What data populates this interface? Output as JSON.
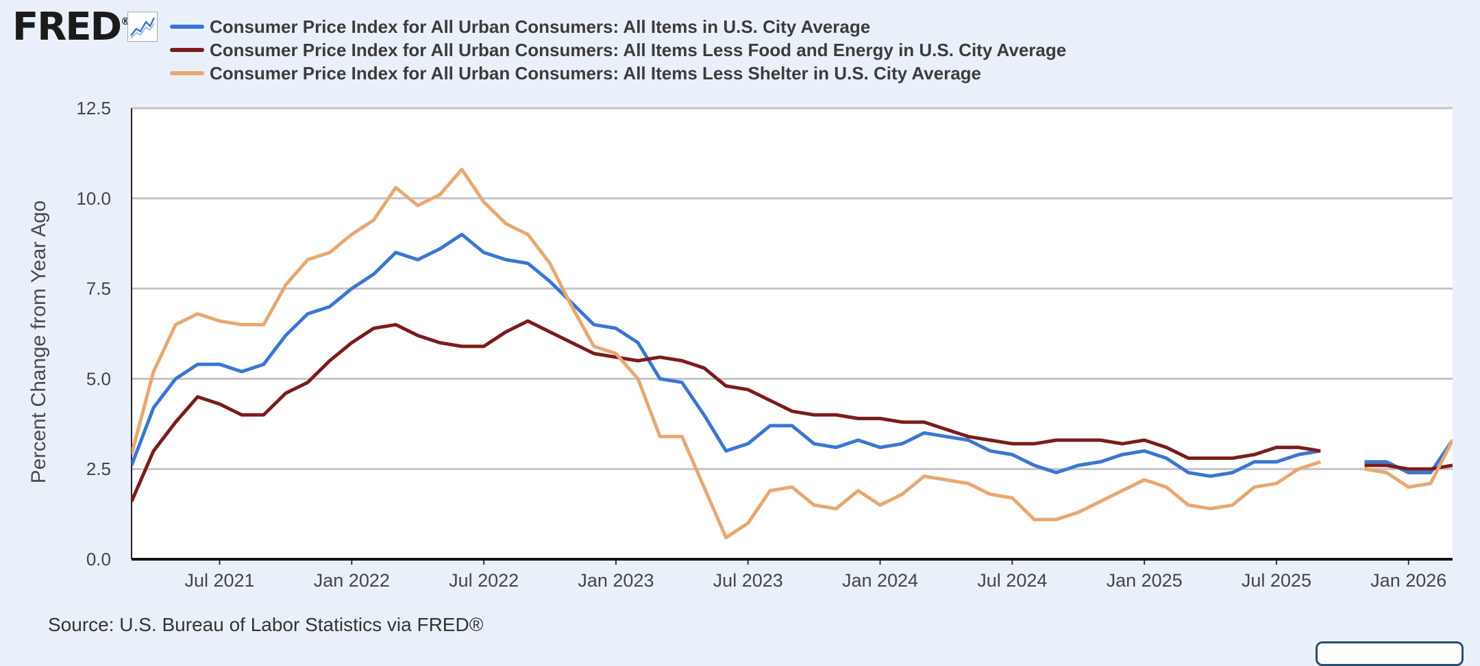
{
  "header": {
    "logo_text": "FRED",
    "logo_mark": "®",
    "icon": "graph-line-icon"
  },
  "source_text": "Source: U.S. Bureau of Labor Statistics via FRED®",
  "chart_data": {
    "type": "line",
    "title": "",
    "ylabel": "Percent Change from Year Ago",
    "xlabel": "",
    "ylim": [
      0,
      12.5
    ],
    "yticks": [
      "0.0",
      "2.5",
      "5.0",
      "7.5",
      "10.0",
      "12.5"
    ],
    "xticks": [
      "Jul 2021",
      "Jan 2022",
      "Jul 2022",
      "Jan 2023",
      "Jul 2023",
      "Jan 2024",
      "Jul 2024",
      "Jan 2025",
      "Jul 2025",
      "Jan 2026"
    ],
    "xlim": [
      "2021-03",
      "2026-03"
    ],
    "grid": true,
    "legend_position": "top",
    "x": [
      "2021-03",
      "2021-04",
      "2021-05",
      "2021-06",
      "2021-07",
      "2021-08",
      "2021-09",
      "2021-10",
      "2021-11",
      "2021-12",
      "2022-01",
      "2022-02",
      "2022-03",
      "2022-04",
      "2022-05",
      "2022-06",
      "2022-07",
      "2022-08",
      "2022-09",
      "2022-10",
      "2022-11",
      "2022-12",
      "2023-01",
      "2023-02",
      "2023-03",
      "2023-04",
      "2023-05",
      "2023-06",
      "2023-07",
      "2023-08",
      "2023-09",
      "2023-10",
      "2023-11",
      "2023-12",
      "2024-01",
      "2024-02",
      "2024-03",
      "2024-04",
      "2024-05",
      "2024-06",
      "2024-07",
      "2024-08",
      "2024-09",
      "2024-10",
      "2024-11",
      "2024-12",
      "2025-01",
      "2025-02",
      "2025-03",
      "2025-04",
      "2025-05",
      "2025-06",
      "2025-07",
      "2025-08",
      "2025-09",
      "2025-10",
      "2025-11",
      "2025-12",
      "2026-01",
      "2026-02",
      "2026-03"
    ],
    "series": [
      {
        "name": "Consumer Price Index for All Urban Consumers: All Items in U.S. City Average",
        "color": "#3a76d2",
        "values": [
          2.6,
          4.2,
          5.0,
          5.4,
          5.4,
          5.2,
          5.4,
          6.2,
          6.8,
          7.0,
          7.5,
          7.9,
          8.5,
          8.3,
          8.6,
          9.0,
          8.5,
          8.3,
          8.2,
          7.7,
          7.1,
          6.5,
          6.4,
          6.0,
          5.0,
          4.9,
          4.0,
          3.0,
          3.2,
          3.7,
          3.7,
          3.2,
          3.1,
          3.3,
          3.1,
          3.2,
          3.5,
          3.4,
          3.3,
          3.0,
          2.9,
          2.6,
          2.4,
          2.6,
          2.7,
          2.9,
          3.0,
          2.8,
          2.4,
          2.3,
          2.4,
          2.7,
          2.7,
          2.9,
          3.0,
          null,
          2.7,
          2.7,
          2.4,
          2.4,
          3.3
        ]
      },
      {
        "name": "Consumer Price Index for All Urban Consumers: All Items Less Food and Energy in U.S. City Average",
        "color": "#7a1c1c",
        "values": [
          1.6,
          3.0,
          3.8,
          4.5,
          4.3,
          4.0,
          4.0,
          4.6,
          4.9,
          5.5,
          6.0,
          6.4,
          6.5,
          6.2,
          6.0,
          5.9,
          5.9,
          6.3,
          6.6,
          6.3,
          6.0,
          5.7,
          5.6,
          5.5,
          5.6,
          5.5,
          5.3,
          4.8,
          4.7,
          4.4,
          4.1,
          4.0,
          4.0,
          3.9,
          3.9,
          3.8,
          3.8,
          3.6,
          3.4,
          3.3,
          3.2,
          3.2,
          3.3,
          3.3,
          3.3,
          3.2,
          3.3,
          3.1,
          2.8,
          2.8,
          2.8,
          2.9,
          3.1,
          3.1,
          3.0,
          null,
          2.6,
          2.6,
          2.5,
          2.5,
          2.6
        ]
      },
      {
        "name": "Consumer Price Index for All Urban Consumers: All Items Less Shelter in U.S. City Average",
        "color": "#e8a872",
        "values": [
          2.9,
          5.2,
          6.5,
          6.8,
          6.6,
          6.5,
          6.5,
          7.6,
          8.3,
          8.5,
          9.0,
          9.4,
          10.3,
          9.8,
          10.1,
          10.8,
          9.9,
          9.3,
          9.0,
          8.2,
          7.0,
          5.9,
          5.7,
          5.0,
          3.4,
          3.4,
          2.0,
          0.6,
          1.0,
          1.9,
          2.0,
          1.5,
          1.4,
          1.9,
          1.5,
          1.8,
          2.3,
          2.2,
          2.1,
          1.8,
          1.7,
          1.1,
          1.1,
          1.3,
          1.6,
          1.9,
          2.2,
          2.0,
          1.5,
          1.4,
          1.5,
          2.0,
          2.1,
          2.5,
          2.7,
          null,
          2.5,
          2.4,
          2.0,
          2.1,
          3.3
        ]
      }
    ]
  }
}
